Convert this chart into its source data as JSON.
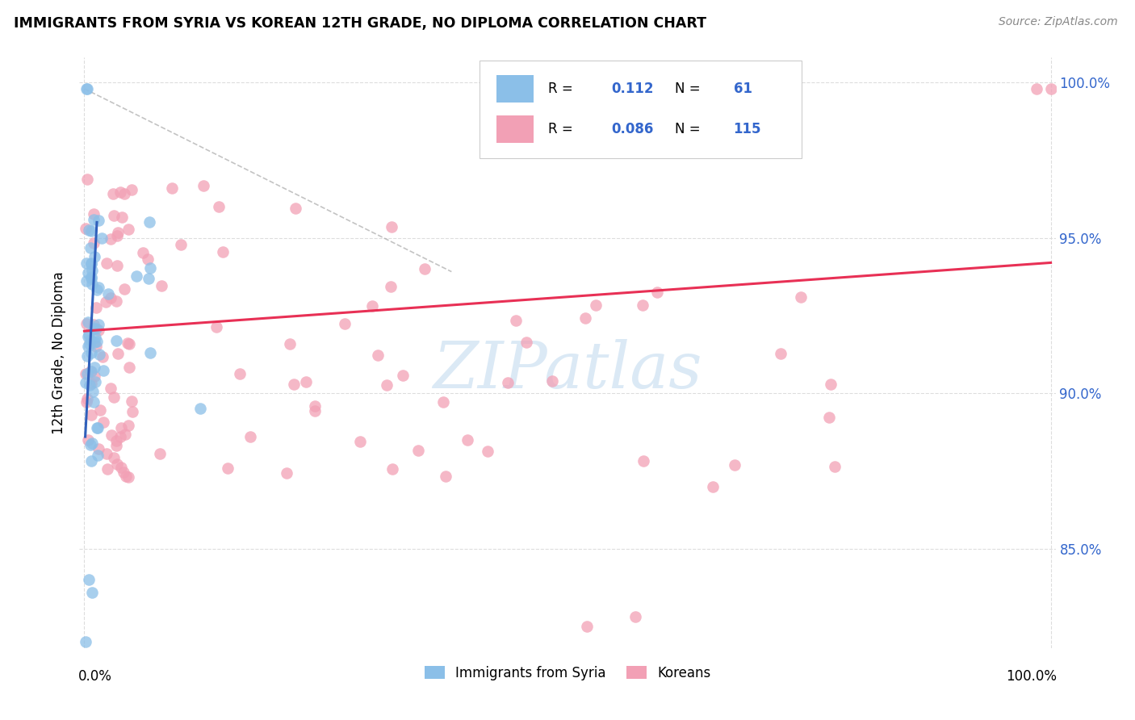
{
  "title": "IMMIGRANTS FROM SYRIA VS KOREAN 12TH GRADE, NO DIPLOMA CORRELATION CHART",
  "source": "Source: ZipAtlas.com",
  "ylabel": "12th Grade, No Diploma",
  "ytick_labels": [
    "85.0%",
    "90.0%",
    "95.0%",
    "100.0%"
  ],
  "ytick_values": [
    0.85,
    0.9,
    0.95,
    1.0
  ],
  "xlim": [
    -0.005,
    1.005
  ],
  "ylim": [
    0.818,
    1.008
  ],
  "legend_syria_R": "0.112",
  "legend_syria_N": "61",
  "legend_korean_R": "0.086",
  "legend_korean_N": "115",
  "legend_label_syria": "Immigrants from Syria",
  "legend_label_korean": "Koreans",
  "color_syria": "#8BBFE8",
  "color_korean": "#F2A0B5",
  "color_syria_line": "#3060BB",
  "color_korean_line": "#E83055",
  "color_diagonal": "#AAAAAA",
  "watermark_text": "ZIPatlas",
  "watermark_color": "#B0CFEA",
  "grid_color": "#DDDDDD",
  "grid_style": "--"
}
